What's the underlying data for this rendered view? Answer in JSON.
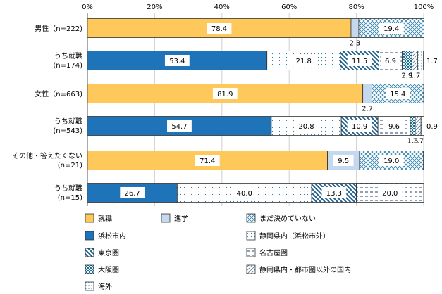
{
  "chart_data": {
    "type": "bar",
    "orientation": "horizontal",
    "stacked": true,
    "percent": true,
    "xlim": [
      0,
      100
    ],
    "x_ticks": [
      "0%",
      "20%",
      "40%",
      "60%",
      "80%",
      "100%"
    ],
    "rows": [
      {
        "label": "男性（n=222)",
        "segments": [
          {
            "category": "就職",
            "value": 78.4,
            "label": "78.4"
          },
          {
            "category": "進学",
            "value": 2.3,
            "label": "2.3"
          },
          {
            "category": "まだ決めていない",
            "value": 19.4,
            "label": "19.4"
          }
        ]
      },
      {
        "label": "うち就職\n(n=174)",
        "segments": [
          {
            "category": "浜松市内",
            "value": 53.4,
            "label": "53.4"
          },
          {
            "category": "静岡県内（浜松市外）",
            "value": 21.8,
            "label": "21.8"
          },
          {
            "category": "東京圏",
            "value": 11.5,
            "label": "11.5"
          },
          {
            "category": "名古屋圏",
            "value": 6.9,
            "label": "6.9"
          },
          {
            "category": "大阪圏",
            "value": 2.9,
            "label": "2.9"
          },
          {
            "category": "静岡県内・都市圏以外の国内",
            "value": 1.7,
            "label": "1.7"
          },
          {
            "category": "海外",
            "value": 1.7,
            "label": "1.7"
          }
        ]
      },
      {
        "label": "女性（n=663)",
        "segments": [
          {
            "category": "就職",
            "value": 81.9,
            "label": "81.9"
          },
          {
            "category": "進学",
            "value": 2.7,
            "label": "2.7"
          },
          {
            "category": "まだ決めていない",
            "value": 15.4,
            "label": "15.4"
          }
        ]
      },
      {
        "label": "うち就職\n(n=543)",
        "segments": [
          {
            "category": "浜松市内",
            "value": 54.7,
            "label": "54.7"
          },
          {
            "category": "静岡県内（浜松市外）",
            "value": 20.8,
            "label": "20.8"
          },
          {
            "category": "東京圏",
            "value": 10.9,
            "label": "10.9"
          },
          {
            "category": "名古屋圏",
            "value": 9.6,
            "label": "9.6"
          },
          {
            "category": "大阪圏",
            "value": 1.5,
            "label": "1.5"
          },
          {
            "category": "静岡県内・都市圏以外の国内",
            "value": 1.7,
            "label": "1.7"
          },
          {
            "category": "海外",
            "value": 0.9,
            "label": "0.9"
          }
        ]
      },
      {
        "label": "その他・答えたくない\n(n=21)",
        "segments": [
          {
            "category": "就職",
            "value": 71.4,
            "label": "71.4"
          },
          {
            "category": "進学",
            "value": 9.5,
            "label": "9.5"
          },
          {
            "category": "まだ決めていない",
            "value": 19.0,
            "label": "19.0"
          }
        ]
      },
      {
        "label": "うち就職\n(n=15)",
        "segments": [
          {
            "category": "浜松市内",
            "value": 26.7,
            "label": "26.7"
          },
          {
            "category": "静岡県内（浜松市外）",
            "value": 40.0,
            "label": "40.0"
          },
          {
            "category": "東京圏",
            "value": 13.3,
            "label": "13.3"
          },
          {
            "category": "名古屋圏",
            "value": 20.0,
            "label": "20.0"
          }
        ]
      }
    ],
    "legend": [
      "就職",
      "進学",
      "まだ決めていない",
      "浜松市内",
      "静岡県内（浜松市外）",
      "東京圏",
      "名古屋圏",
      "大阪圏",
      "静岡県内・都市圏以外の国内",
      "海外"
    ],
    "grid": true,
    "legend_position": "bottom"
  }
}
